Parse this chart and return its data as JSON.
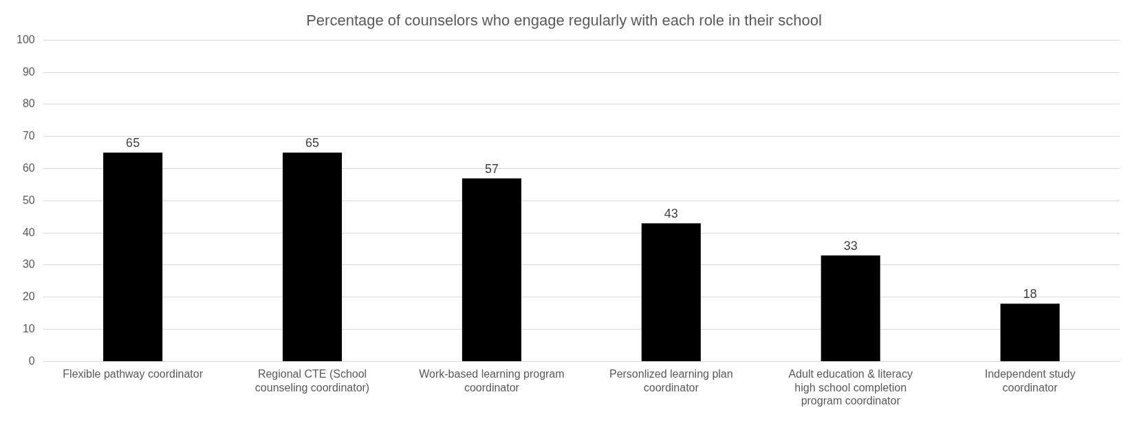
{
  "chart_data": {
    "type": "bar",
    "title": "Percentage of counselors who engage regularly with each role in their school",
    "categories": [
      "Flexible pathway coordinator",
      "Regional CTE (School counseling coordinator)",
      "Work-based learning program coordinator",
      "Personlized learning plan coordinator",
      "Adult education & literacy high school completion program coordinator",
      "Independent study coordinator"
    ],
    "values": [
      65,
      65,
      57,
      43,
      33,
      18
    ],
    "color": "#000000",
    "ylim": [
      0,
      100
    ],
    "yticks": [
      0,
      10,
      20,
      30,
      40,
      50,
      60,
      70,
      80,
      90,
      100
    ],
    "grid": "y",
    "legend": false,
    "data_labels": true
  }
}
